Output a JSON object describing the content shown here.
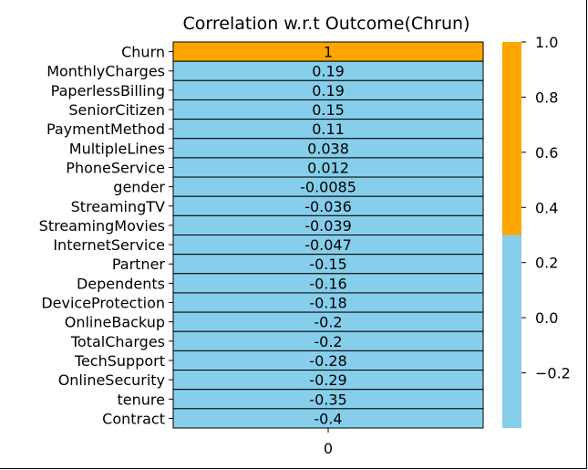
{
  "chart_data": {
    "type": "heatmap",
    "title": "Correlation w.r.t Outcome(Chrun)",
    "column_labels": [
      "0"
    ],
    "rows": [
      {
        "label": "Churn",
        "value": 1,
        "text": "1"
      },
      {
        "label": "MonthlyCharges",
        "value": 0.19,
        "text": "0.19"
      },
      {
        "label": "PaperlessBilling",
        "value": 0.19,
        "text": "0.19"
      },
      {
        "label": "SeniorCitizen",
        "value": 0.15,
        "text": "0.15"
      },
      {
        "label": "PaymentMethod",
        "value": 0.11,
        "text": "0.11"
      },
      {
        "label": "MultipleLines",
        "value": 0.038,
        "text": "0.038"
      },
      {
        "label": "PhoneService",
        "value": 0.012,
        "text": "0.012"
      },
      {
        "label": "gender",
        "value": -0.0085,
        "text": "-0.0085"
      },
      {
        "label": "StreamingTV",
        "value": -0.036,
        "text": "-0.036"
      },
      {
        "label": "StreamingMovies",
        "value": -0.039,
        "text": "-0.039"
      },
      {
        "label": "InternetService",
        "value": -0.047,
        "text": "-0.047"
      },
      {
        "label": "Partner",
        "value": -0.15,
        "text": "-0.15"
      },
      {
        "label": "Dependents",
        "value": -0.16,
        "text": "-0.16"
      },
      {
        "label": "DeviceProtection",
        "value": -0.18,
        "text": "-0.18"
      },
      {
        "label": "OnlineBackup",
        "value": -0.2,
        "text": "-0.2"
      },
      {
        "label": "TotalCharges",
        "value": -0.2,
        "text": "-0.2"
      },
      {
        "label": "TechSupport",
        "value": -0.28,
        "text": "-0.28"
      },
      {
        "label": "OnlineSecurity",
        "value": -0.29,
        "text": "-0.29"
      },
      {
        "label": "tenure",
        "value": -0.35,
        "text": "-0.35"
      },
      {
        "label": "Contract",
        "value": -0.4,
        "text": "-0.4"
      }
    ],
    "colorbar": {
      "range": [
        -0.4,
        1.0
      ],
      "threshold": 0.3,
      "low_color": "#87ceeb",
      "high_color": "#ffa500",
      "ticks": [
        {
          "value": 1.0,
          "label": "1.0"
        },
        {
          "value": 0.8,
          "label": "0.8"
        },
        {
          "value": 0.6,
          "label": "0.6"
        },
        {
          "value": 0.4,
          "label": "0.4"
        },
        {
          "value": 0.2,
          "label": "0.2"
        },
        {
          "value": 0.0,
          "label": "0.0"
        },
        {
          "value": -0.2,
          "label": "−0.2"
        }
      ]
    }
  }
}
